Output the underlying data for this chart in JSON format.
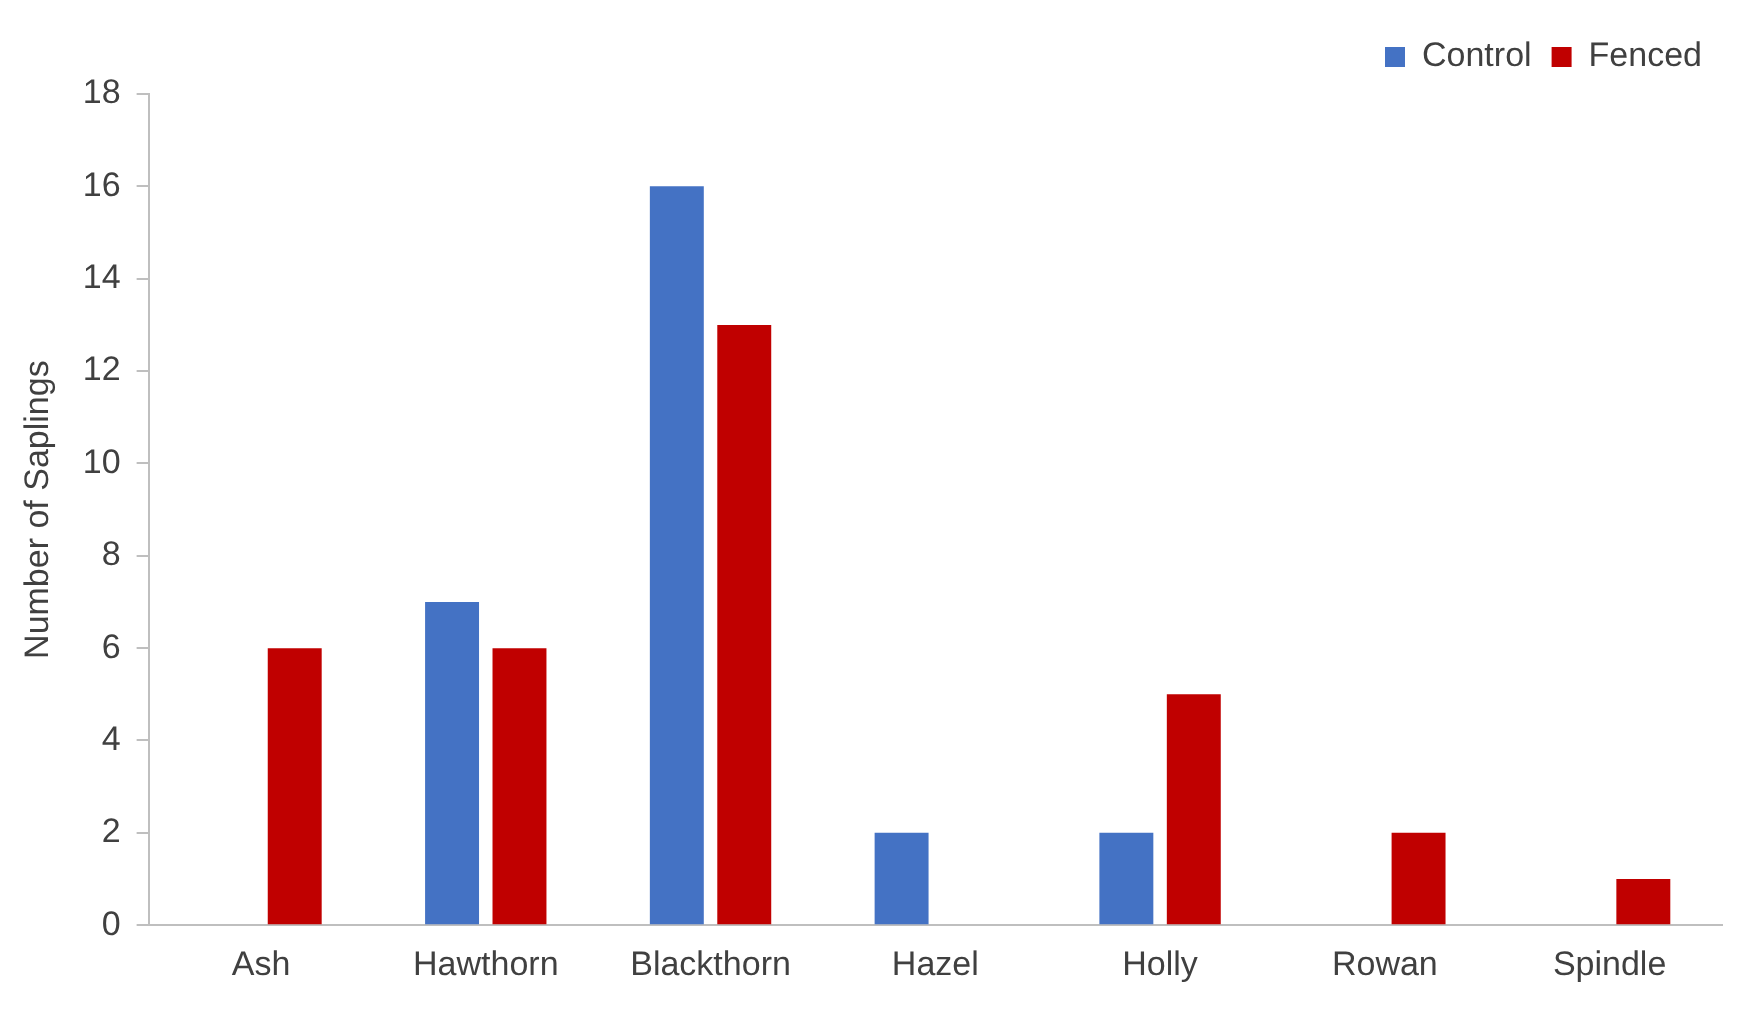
{
  "chart_data": {
    "type": "bar",
    "ylabel": "Number of Saplings",
    "categories": [
      "Ash",
      "Hawthorn",
      "Blackthorn",
      "Hazel",
      "Holly",
      "Rowan",
      "Spindle"
    ],
    "series": [
      {
        "name": "Control",
        "color": "#4472c4",
        "values": [
          0,
          7,
          16,
          2,
          2,
          0,
          0
        ]
      },
      {
        "name": "Fenced",
        "color": "#c00000",
        "values": [
          6,
          6,
          13,
          0,
          5,
          2,
          1
        ]
      }
    ],
    "ylim": [
      0,
      18
    ],
    "yticks": [
      0,
      2,
      4,
      6,
      8,
      10,
      12,
      14,
      16,
      18
    ],
    "grid": false,
    "legend": "top right"
  }
}
